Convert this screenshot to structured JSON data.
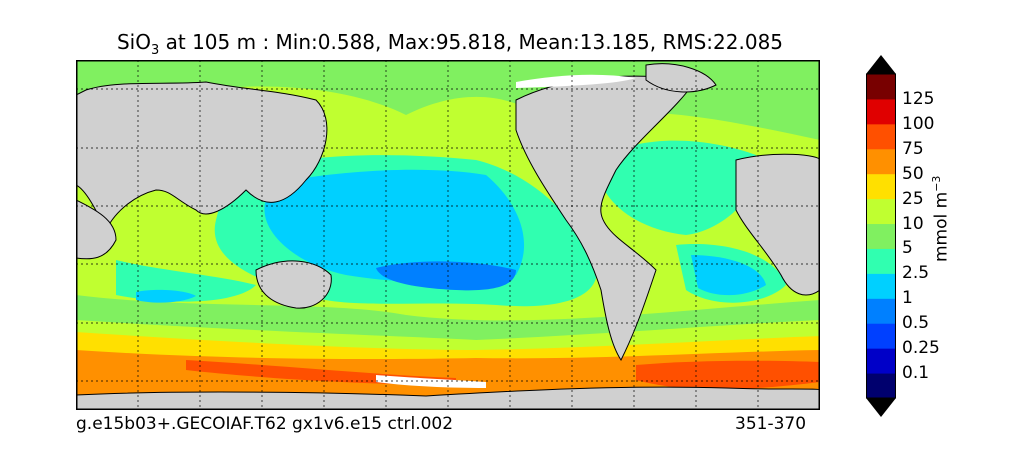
{
  "title": {
    "prefix": "SiO",
    "subscript": "3",
    "rest": " at 105 m : Min:0.588, Max:95.818, Mean:13.185, RMS:22.085"
  },
  "footer": {
    "case_name": "g.e15b03+.GECOIAF.T62 gx1v6.e15 ctrl.002",
    "years": "351-370"
  },
  "colorbar": {
    "levels": [
      "0.1",
      "0.25",
      "0.5",
      "1",
      "2.5",
      "5",
      "10",
      "25",
      "50",
      "75",
      "100",
      "125"
    ],
    "colors": [
      "#00006e",
      "#0000c8",
      "#0040ff",
      "#0080ff",
      "#00d0ff",
      "#30ffb0",
      "#80f060",
      "#c0ff30",
      "#ffe000",
      "#ff9000",
      "#ff5000",
      "#e00000",
      "#780000"
    ],
    "units_base": "mmol m",
    "units_exp": "−3"
  },
  "colors": {
    "land": "#d0d0d0",
    "sea_ice": "#ffffff"
  }
}
